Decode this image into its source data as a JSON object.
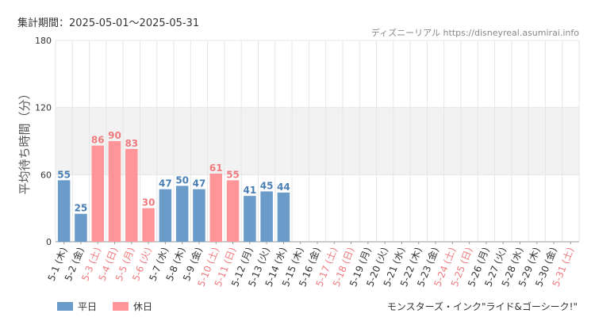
{
  "header": {
    "period_label": "集計期間：2025-05-01～2025-05-31",
    "site_label": "ディズニーリアル https://disneyreal.asumirai.info"
  },
  "footer": {
    "attraction": "モンスターズ・インク\"ライド&ゴーシーク!\""
  },
  "colors": {
    "weekday": "#6b9bc9",
    "holiday": "#ff9598",
    "weekday_text": "#4a7fb5",
    "holiday_text": "#f07a7e",
    "band": "#f2f2f2",
    "grid": "#e6e6e6"
  },
  "chart_data": {
    "type": "bar",
    "title": "",
    "ylabel": "平均待ち時間（分）",
    "xlabel": "",
    "ylim": [
      0,
      180
    ],
    "yticks": [
      0,
      60,
      120,
      180
    ],
    "shaded_band": [
      60,
      120
    ],
    "categories": [
      "5-1 (木)",
      "5-2 (金)",
      "5-3 (土)",
      "5-4 (日)",
      "5-5 (月)",
      "5-6 (火)",
      "5-7 (水)",
      "5-8 (木)",
      "5-9 (金)",
      "5-10 (土)",
      "5-11 (日)",
      "5-12 (月)",
      "5-13 (火)",
      "5-14 (水)",
      "5-15 (木)",
      "5-16 (金)",
      "5-17 (土)",
      "5-18 (日)",
      "5-19 (月)",
      "5-20 (火)",
      "5-21 (水)",
      "5-22 (木)",
      "5-23 (金)",
      "5-24 (土)",
      "5-25 (日)",
      "5-26 (月)",
      "5-27 (火)",
      "5-28 (水)",
      "5-29 (木)",
      "5-30 (金)",
      "5-31 (土)"
    ],
    "holiday": [
      false,
      false,
      true,
      true,
      true,
      true,
      false,
      false,
      false,
      true,
      true,
      false,
      false,
      false,
      false,
      false,
      true,
      true,
      false,
      false,
      false,
      false,
      false,
      true,
      true,
      false,
      false,
      false,
      false,
      false,
      true
    ],
    "values": [
      55,
      25,
      86,
      90,
      83,
      30,
      47,
      50,
      47,
      61,
      55,
      41,
      45,
      44,
      null,
      null,
      null,
      null,
      null,
      null,
      null,
      null,
      null,
      null,
      null,
      null,
      null,
      null,
      null,
      null,
      null
    ],
    "legend": [
      {
        "name": "平日",
        "color": "#6b9bc9"
      },
      {
        "name": "休日",
        "color": "#ff9598"
      }
    ],
    "legend_position": "bottom-left",
    "grid": true
  }
}
